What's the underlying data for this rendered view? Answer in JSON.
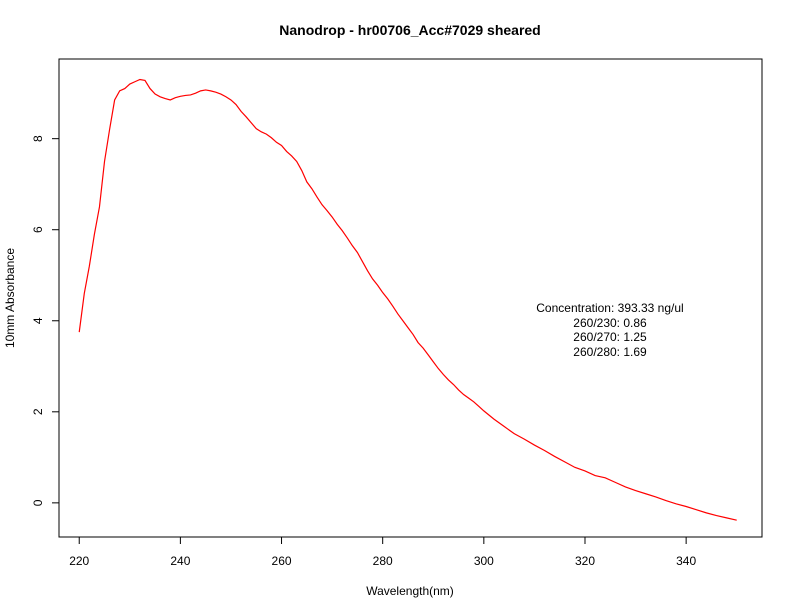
{
  "chart_data": {
    "type": "line",
    "title": "Nanodrop - hr00706_Acc#7029 sheared",
    "xlabel": "Wavelength(nm)",
    "ylabel": "10mm Absorbance",
    "xlim": [
      216,
      355
    ],
    "ylim": [
      -0.75,
      9.75
    ],
    "x_ticks": [
      220,
      240,
      260,
      280,
      300,
      320,
      340
    ],
    "y_ticks": [
      0,
      2,
      4,
      6,
      8
    ],
    "grid": false,
    "line_color": "#ff0000",
    "series": [
      {
        "x": [
          220,
          221,
          222,
          223,
          224,
          225,
          226,
          227,
          228,
          229,
          230,
          231,
          232,
          233,
          234,
          235,
          236,
          237,
          238,
          239,
          240,
          241,
          242,
          243,
          244,
          245,
          246,
          247,
          248,
          249,
          250,
          251,
          252,
          253,
          254,
          255,
          256,
          257,
          258,
          259,
          260,
          261,
          262,
          263,
          264,
          265,
          266,
          267,
          268,
          269,
          270,
          271,
          272,
          273,
          274,
          275,
          276,
          277,
          278,
          279,
          280,
          281,
          282,
          283,
          284,
          285,
          286,
          287,
          288,
          289,
          290,
          291,
          292,
          293,
          294,
          295,
          296,
          297,
          298,
          299,
          300,
          302,
          304,
          306,
          308,
          310,
          312,
          314,
          316,
          318,
          320,
          322,
          324,
          326,
          328,
          330,
          332,
          334,
          336,
          338,
          340,
          342,
          344,
          346,
          348,
          350
        ],
        "y": [
          3.75,
          4.6,
          5.2,
          5.9,
          6.5,
          7.5,
          8.2,
          8.85,
          9.05,
          9.1,
          9.2,
          9.25,
          9.3,
          9.28,
          9.1,
          8.98,
          8.92,
          8.88,
          8.85,
          8.9,
          8.93,
          8.95,
          8.96,
          9.0,
          9.05,
          9.07,
          9.05,
          9.02,
          8.98,
          8.92,
          8.85,
          8.75,
          8.6,
          8.48,
          8.35,
          8.22,
          8.15,
          8.1,
          8.02,
          7.92,
          7.85,
          7.72,
          7.62,
          7.5,
          7.3,
          7.05,
          6.9,
          6.72,
          6.55,
          6.42,
          6.28,
          6.12,
          5.98,
          5.82,
          5.65,
          5.5,
          5.3,
          5.1,
          4.92,
          4.78,
          4.62,
          4.48,
          4.32,
          4.15,
          4.0,
          3.85,
          3.7,
          3.52,
          3.4,
          3.25,
          3.1,
          2.95,
          2.82,
          2.7,
          2.6,
          2.48,
          2.38,
          2.3,
          2.22,
          2.12,
          2.02,
          1.84,
          1.68,
          1.52,
          1.4,
          1.27,
          1.15,
          1.02,
          0.9,
          0.78,
          0.7,
          0.6,
          0.55,
          0.45,
          0.35,
          0.27,
          0.2,
          0.13,
          0.05,
          -0.02,
          -0.08,
          -0.15,
          -0.22,
          -0.28,
          -0.33,
          -0.38
        ]
      }
    ],
    "annotations": [
      "Concentration: 393.33 ng/ul",
      "260/230: 0.86",
      "260/270: 1.25",
      "260/280: 1.69"
    ]
  }
}
